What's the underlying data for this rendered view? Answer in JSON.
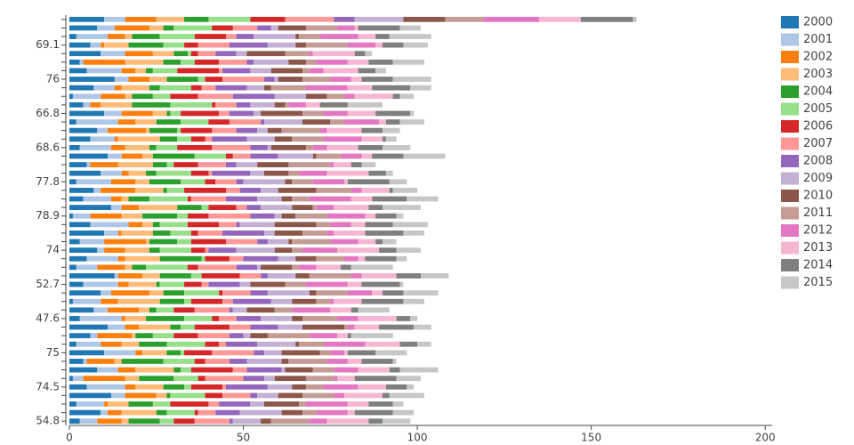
{
  "chart_data": {
    "type": "stacked-barh",
    "categories": [
      "54.8",
      null,
      null,
      null,
      "74.5",
      null,
      null,
      null,
      "75",
      null,
      null,
      null,
      "47.6",
      null,
      null,
      null,
      "52.7",
      null,
      null,
      null,
      "74",
      null,
      null,
      null,
      "78.9",
      null,
      null,
      null,
      "77.8",
      null,
      null,
      null,
      "68.6",
      null,
      null,
      null,
      "66.8",
      null,
      null,
      null,
      "76",
      null,
      null,
      null,
      "69.1",
      null,
      null,
      null
    ],
    "series": [
      {
        "name": "2000",
        "color": "#1f77b4",
        "values": [
          3,
          9,
          2,
          12,
          5,
          1,
          8,
          4,
          10,
          2,
          6,
          11,
          3,
          7,
          1,
          9,
          4,
          13,
          2,
          5,
          8,
          3,
          10,
          6,
          1,
          12,
          4,
          7,
          2,
          9,
          5,
          11,
          3,
          6,
          8,
          2,
          10,
          4,
          1,
          7,
          13,
          5,
          3,
          9,
          6,
          2,
          8,
          10
        ]
      },
      {
        "name": "2001",
        "color": "#aec7e8",
        "values": [
          5,
          2,
          8,
          4,
          11,
          3,
          6,
          1,
          9,
          7,
          2,
          5,
          12,
          4,
          8,
          3,
          10,
          1,
          6,
          9,
          2,
          7,
          4,
          11,
          5,
          3,
          8,
          2,
          10,
          6,
          1,
          4,
          9,
          7,
          3,
          12,
          5,
          2,
          8,
          6,
          4,
          10,
          1,
          7,
          3,
          9,
          5,
          6
        ]
      },
      {
        "name": "2002",
        "color": "#ff7f0e",
        "values": [
          7,
          4,
          1,
          9,
          3,
          12,
          5,
          8,
          2,
          6,
          10,
          4,
          1,
          9,
          5,
          11,
          3,
          7,
          8,
          2,
          6,
          12,
          1,
          4,
          9,
          5,
          3,
          10,
          7,
          2,
          8,
          6,
          4,
          1,
          11,
          5,
          9,
          3,
          7,
          2,
          6,
          4,
          12,
          8,
          1,
          5,
          10,
          9
        ]
      },
      {
        "name": "2003",
        "color": "#ffbb78",
        "values": [
          2,
          10,
          6,
          3,
          8,
          4,
          11,
          2,
          7,
          5,
          1,
          9,
          6,
          3,
          12,
          4,
          8,
          5,
          2,
          10,
          7,
          1,
          9,
          3,
          6,
          11,
          2,
          8,
          4,
          5,
          10,
          3,
          7,
          12,
          1,
          6,
          4,
          9,
          2,
          8,
          5,
          3,
          11,
          6,
          7,
          2,
          4,
          8
        ]
      },
      {
        "name": "2004",
        "color": "#2ca02c",
        "values": [
          9,
          3,
          7,
          1,
          6,
          10,
          2,
          12,
          4,
          8,
          5,
          3,
          11,
          2,
          7,
          6,
          1,
          9,
          4,
          12,
          3,
          8,
          5,
          2,
          10,
          7,
          6,
          1,
          9,
          3,
          4,
          12,
          2,
          5,
          8,
          7,
          1,
          11,
          6,
          3,
          9,
          2,
          5,
          4,
          10,
          8,
          3,
          7
        ]
      },
      {
        "name": "2005",
        "color": "#98df8a",
        "values": [
          4,
          8,
          5,
          10,
          2,
          7,
          3,
          9,
          1,
          11,
          6,
          4,
          8,
          5,
          2,
          10,
          7,
          3,
          12,
          1,
          9,
          4,
          6,
          8,
          3,
          2,
          11,
          5,
          7,
          10,
          2,
          9,
          6,
          4,
          1,
          8,
          3,
          12,
          5,
          9,
          2,
          7,
          4,
          1,
          6,
          10,
          11,
          12
        ]
      },
      {
        "name": "2006",
        "color": "#d62728",
        "values": [
          6,
          1,
          11,
          5,
          9,
          2,
          12,
          3,
          8,
          4,
          7,
          10,
          2,
          6,
          9,
          1,
          5,
          11,
          3,
          7,
          4,
          10,
          2,
          9,
          6,
          8,
          1,
          12,
          3,
          5,
          7,
          2,
          10,
          4,
          9,
          6,
          11,
          1,
          8,
          3,
          5,
          12,
          7,
          2,
          4,
          9,
          6,
          10
        ]
      },
      {
        "name": "2007",
        "color": "#ff9896",
        "values": [
          10,
          5,
          3,
          8,
          1,
          11,
          4,
          7,
          12,
          2,
          9,
          6,
          5,
          10,
          3,
          8,
          2,
          6,
          11,
          4,
          1,
          9,
          7,
          5,
          12,
          3,
          10,
          4,
          6,
          1,
          8,
          5,
          11,
          2,
          7,
          9,
          3,
          6,
          10,
          4,
          12,
          1,
          8,
          5,
          9,
          3,
          7,
          14
        ]
      },
      {
        "name": "2008",
        "color": "#9467bd",
        "values": [
          1,
          7,
          9,
          2,
          12,
          6,
          10,
          5,
          3,
          9,
          4,
          8,
          7,
          1,
          11,
          5,
          9,
          2,
          6,
          10,
          8,
          3,
          12,
          1,
          7,
          4,
          9,
          6,
          2,
          11,
          3,
          8,
          5,
          10,
          6,
          1,
          7,
          4,
          12,
          9,
          3,
          8,
          2,
          6,
          11,
          5,
          4,
          6
        ]
      },
      {
        "name": "2009",
        "color": "#c5b0d5",
        "values": [
          8,
          12,
          4,
          6,
          7,
          3,
          1,
          10,
          5,
          11,
          2,
          7,
          9,
          4,
          6,
          12,
          3,
          8,
          1,
          5,
          11,
          6,
          3,
          10,
          2,
          9,
          7,
          5,
          12,
          4,
          6,
          10,
          1,
          8,
          3,
          11,
          2,
          7,
          9,
          5,
          1,
          6,
          10,
          3,
          8,
          12,
          2,
          14
        ]
      },
      {
        "name": "2010",
        "color": "#8c564b",
        "values": [
          3,
          6,
          10,
          7,
          4,
          9,
          8,
          2,
          11,
          1,
          5,
          12,
          3,
          8,
          7,
          2,
          10,
          4,
          9,
          6,
          5,
          1,
          8,
          12,
          4,
          6,
          3,
          11,
          2,
          7,
          9,
          1,
          10,
          5,
          4,
          8,
          12,
          3,
          6,
          2,
          7,
          9,
          5,
          11,
          3,
          1,
          8,
          12
        ]
      },
      {
        "name": "2011",
        "color": "#c49c94",
        "values": [
          11,
          4,
          2,
          9,
          5,
          8,
          6,
          11,
          3,
          7,
          12,
          1,
          10,
          5,
          4,
          9,
          6,
          12,
          2,
          8,
          3,
          11,
          7,
          4,
          9,
          1,
          5,
          10,
          6,
          3,
          12,
          7,
          2,
          9,
          11,
          4,
          6,
          1,
          5,
          10,
          8,
          2,
          3,
          7,
          12,
          6,
          9,
          11
        ]
      },
      {
        "name": "2012",
        "color": "#e377c2",
        "values": [
          5,
          9,
          12,
          3,
          10,
          1,
          7,
          6,
          4,
          12,
          8,
          2,
          6,
          11,
          1,
          7,
          12,
          3,
          5,
          4,
          10,
          8,
          2,
          6,
          11,
          5,
          12,
          3,
          9,
          8,
          1,
          6,
          4,
          11,
          2,
          10,
          7,
          5,
          3,
          12,
          6,
          4,
          9,
          1,
          8,
          11,
          5,
          16
        ]
      },
      {
        "name": "2013",
        "color": "#f7b6d2",
        "values": [
          12,
          2,
          6,
          11,
          8,
          5,
          9,
          4,
          1,
          10,
          3,
          7,
          11,
          6,
          8,
          3,
          4,
          10,
          7,
          2,
          12,
          5,
          9,
          4,
          3,
          10,
          6,
          8,
          1,
          12,
          5,
          3,
          9,
          6,
          10,
          2,
          8,
          4,
          11,
          7,
          3,
          10,
          6,
          12,
          2,
          5,
          1,
          12
        ]
      },
      {
        "name": "2014",
        "color": "#7f7f7f",
        "values": [
          4,
          11,
          7,
          2,
          6,
          12,
          3,
          9,
          8,
          5,
          1,
          10,
          4,
          2,
          12,
          6,
          11,
          7,
          3,
          9,
          5,
          2,
          11,
          8,
          6,
          4,
          10,
          1,
          12,
          5,
          3,
          9,
          7,
          1,
          6,
          4,
          10,
          8,
          2,
          11,
          9,
          5,
          7,
          3,
          6,
          4,
          12,
          15
        ]
      },
      {
        "name": "2015",
        "color": "#c7c7c7",
        "values": [
          8,
          6,
          3,
          10,
          2,
          7,
          11,
          1,
          9,
          4,
          12,
          5,
          2,
          9,
          6,
          10,
          1,
          8,
          12,
          3,
          7,
          4,
          6,
          10,
          2,
          11,
          9,
          7,
          5,
          2,
          4,
          12,
          8,
          3,
          5,
          7,
          1,
          10,
          4,
          6,
          11,
          3,
          9,
          2,
          7,
          12,
          6,
          1
        ]
      }
    ],
    "xlim": [
      0,
      202
    ],
    "xticks": [
      0,
      50,
      100,
      150,
      200
    ],
    "legend": "right"
  }
}
